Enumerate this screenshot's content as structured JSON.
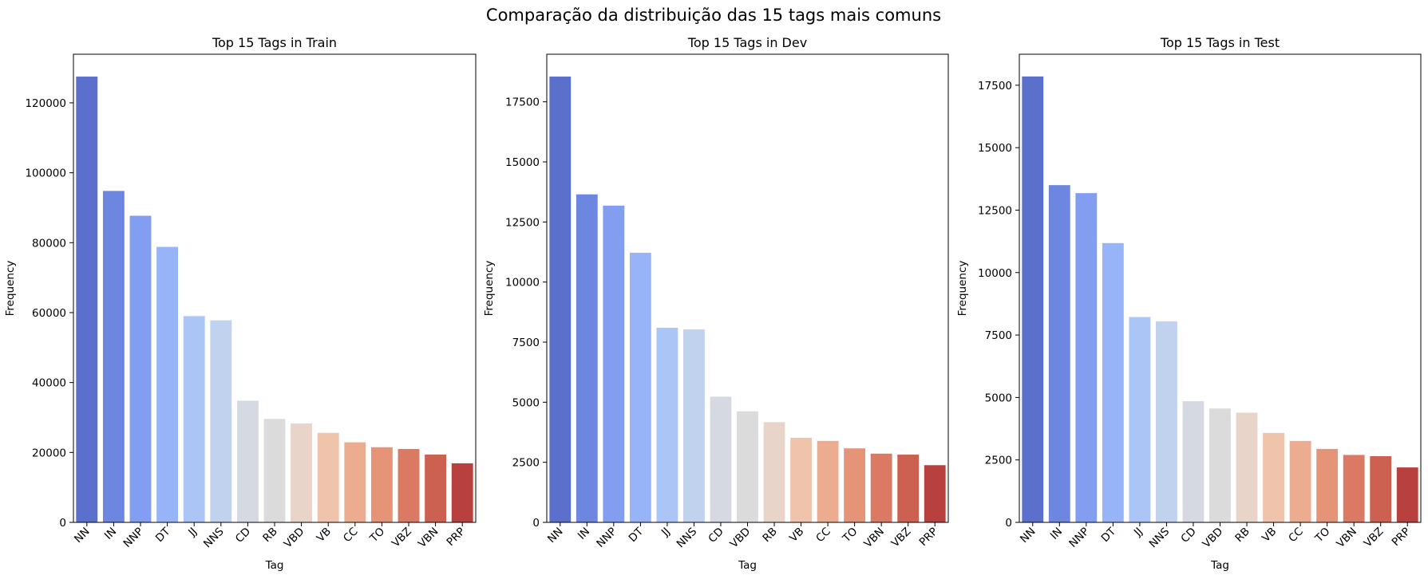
{
  "figure": {
    "suptitle": "Comparação da distribuição das 15 tags mais comuns"
  },
  "palette": [
    "#5b6fcd",
    "#6d87e0",
    "#819ef0",
    "#97b4f8",
    "#acc5f7",
    "#c1d2ef",
    "#d4d9e2",
    "#dcdbdb",
    "#e8d4c8",
    "#f0c3ab",
    "#ecac90",
    "#e59478",
    "#da7a62",
    "#cc6151",
    "#b8403d"
  ],
  "chart_data": [
    {
      "type": "bar",
      "title": "Top 15 Tags in Train",
      "xlabel": "Tag",
      "ylabel": "Frequency",
      "categories": [
        "NN",
        "IN",
        "NNP",
        "DT",
        "JJ",
        "NNS",
        "CD",
        "RB",
        "VBD",
        "VB",
        "CC",
        "TO",
        "VBZ",
        "VBN",
        "PRP"
      ],
      "values": [
        127500,
        94800,
        87700,
        78800,
        59000,
        57800,
        34800,
        29600,
        28300,
        25600,
        22900,
        21500,
        21000,
        19400,
        16900
      ],
      "ylim": [
        0,
        133900
      ],
      "yticks": [
        0,
        20000,
        40000,
        60000,
        80000,
        100000,
        120000
      ],
      "ytick_labels": [
        "0",
        "20000",
        "40000",
        "60000",
        "80000",
        "100000",
        "120000"
      ]
    },
    {
      "type": "bar",
      "title": "Top 15 Tags in Dev",
      "xlabel": "Tag",
      "ylabel": "Frequency",
      "categories": [
        "NN",
        "IN",
        "NNP",
        "DT",
        "JJ",
        "NNS",
        "CD",
        "VBD",
        "RB",
        "VB",
        "CC",
        "TO",
        "VBN",
        "VBZ",
        "PRP"
      ],
      "values": [
        18550,
        13650,
        13180,
        11220,
        8100,
        8030,
        5230,
        4620,
        4170,
        3520,
        3390,
        3080,
        2860,
        2820,
        2380
      ],
      "ylim": [
        0,
        19480
      ],
      "yticks": [
        0,
        2500,
        5000,
        7500,
        10000,
        12500,
        15000,
        17500
      ],
      "ytick_labels": [
        "0",
        "2500",
        "5000",
        "7500",
        "10000",
        "12500",
        "15000",
        "17500"
      ]
    },
    {
      "type": "bar",
      "title": "Top 15 Tags in Test",
      "xlabel": "Tag",
      "ylabel": "Frequency",
      "categories": [
        "NN",
        "IN",
        "NNP",
        "DT",
        "JJ",
        "NNS",
        "CD",
        "VBD",
        "RB",
        "VB",
        "CC",
        "TO",
        "VBN",
        "VBZ",
        "PRP"
      ],
      "values": [
        17850,
        13500,
        13180,
        11180,
        8220,
        8050,
        4850,
        4560,
        4390,
        3580,
        3260,
        2940,
        2700,
        2650,
        2200
      ],
      "ylim": [
        0,
        18740
      ],
      "yticks": [
        0,
        2500,
        5000,
        7500,
        10000,
        12500,
        15000,
        17500
      ],
      "ytick_labels": [
        "0",
        "2500",
        "5000",
        "7500",
        "10000",
        "12500",
        "15000",
        "17500"
      ]
    }
  ]
}
